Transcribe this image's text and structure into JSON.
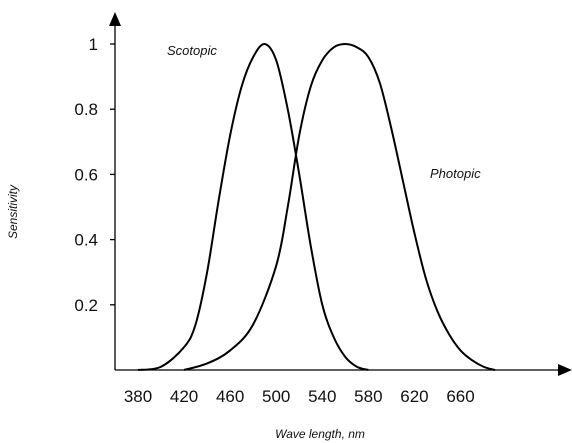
{
  "chart_data": {
    "type": "line",
    "title": "",
    "xlabel": "Wave length, nm",
    "ylabel": "Sensitivity",
    "xlim": [
      350,
      700
    ],
    "ylim": [
      0,
      1.0
    ],
    "x_ticks": [
      380,
      420,
      460,
      500,
      540,
      580,
      620,
      660
    ],
    "y_ticks": [
      0.2,
      0.4,
      0.6,
      0.8,
      1
    ],
    "y_tick_labels": [
      "0.2",
      "0.4",
      "0.6",
      "0.8",
      "1"
    ],
    "grid": false,
    "legend": "none",
    "series": [
      {
        "name": "Scotopic",
        "color": "#000000",
        "points": [
          [
            380,
            0
          ],
          [
            400,
            0.01
          ],
          [
            420,
            0.07
          ],
          [
            430,
            0.14
          ],
          [
            440,
            0.3
          ],
          [
            450,
            0.52
          ],
          [
            460,
            0.72
          ],
          [
            470,
            0.87
          ],
          [
            480,
            0.96
          ],
          [
            490,
            1.0
          ],
          [
            500,
            0.95
          ],
          [
            510,
            0.8
          ],
          [
            520,
            0.6
          ],
          [
            530,
            0.38
          ],
          [
            540,
            0.2
          ],
          [
            550,
            0.1
          ],
          [
            560,
            0.04
          ],
          [
            570,
            0.01
          ],
          [
            580,
            0
          ]
        ]
      },
      {
        "name": "Photopic",
        "color": "#000000",
        "points": [
          [
            420,
            0
          ],
          [
            440,
            0.02
          ],
          [
            460,
            0.06
          ],
          [
            480,
            0.14
          ],
          [
            500,
            0.32
          ],
          [
            510,
            0.5
          ],
          [
            520,
            0.72
          ],
          [
            530,
            0.87
          ],
          [
            540,
            0.95
          ],
          [
            550,
            0.99
          ],
          [
            560,
            1.0
          ],
          [
            570,
            0.99
          ],
          [
            580,
            0.96
          ],
          [
            590,
            0.88
          ],
          [
            600,
            0.74
          ],
          [
            610,
            0.58
          ],
          [
            620,
            0.42
          ],
          [
            630,
            0.28
          ],
          [
            640,
            0.18
          ],
          [
            650,
            0.11
          ],
          [
            660,
            0.06
          ],
          [
            670,
            0.03
          ],
          [
            680,
            0.01
          ],
          [
            690,
            0
          ]
        ]
      }
    ]
  }
}
